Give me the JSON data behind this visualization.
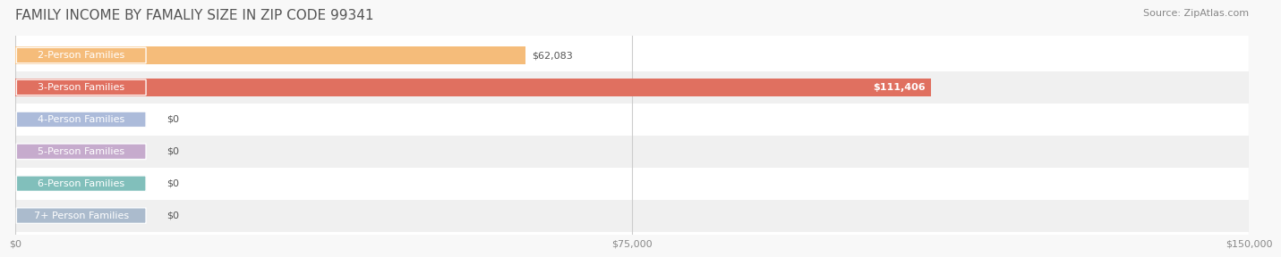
{
  "title": "FAMILY INCOME BY FAMALIY SIZE IN ZIP CODE 99341",
  "source": "Source: ZipAtlas.com",
  "categories": [
    "2-Person Families",
    "3-Person Families",
    "4-Person Families",
    "5-Person Families",
    "6-Person Families",
    "7+ Person Families"
  ],
  "values": [
    62083,
    111406,
    0,
    0,
    0,
    0
  ],
  "bar_colors": [
    "#f5bc7a",
    "#e07060",
    "#a8b8d8",
    "#c4a8cc",
    "#7abcb8",
    "#a8b8cc"
  ],
  "value_labels": [
    "$62,083",
    "$111,406",
    "$0",
    "$0",
    "$0",
    "$0"
  ],
  "value_label_inside": [
    false,
    true,
    false,
    false,
    false,
    false
  ],
  "xlim": [
    0,
    150000
  ],
  "xticks": [
    0,
    75000,
    150000
  ],
  "xticklabels": [
    "$0",
    "$75,000",
    "$150,000"
  ],
  "bar_height": 0.55,
  "row_colors": [
    "#ffffff",
    "#f0f0f0",
    "#ffffff",
    "#f0f0f0",
    "#ffffff",
    "#f0f0f0"
  ],
  "title_fontsize": 11,
  "source_fontsize": 8,
  "label_fontsize": 8,
  "value_fontsize": 8
}
